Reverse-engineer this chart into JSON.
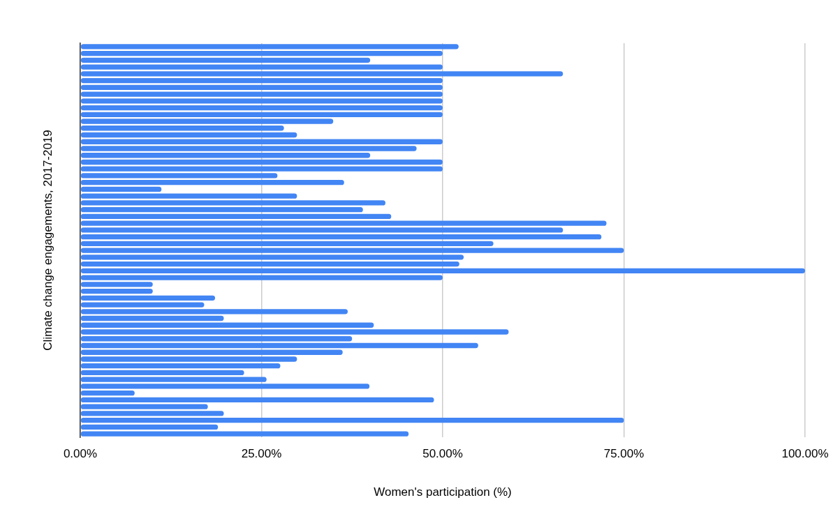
{
  "chart_data": {
    "type": "bar",
    "orientation": "horizontal",
    "xlabel": "Women's participation (%)",
    "ylabel": "Climate change engagements, 2017-2019",
    "categories": [
      null,
      null,
      null,
      null,
      null,
      null,
      null,
      null,
      null,
      null,
      null,
      null,
      null,
      null,
      null,
      null,
      null,
      null,
      null,
      null,
      null,
      null,
      null,
      null,
      null,
      null,
      null,
      null,
      null,
      null,
      null,
      null,
      null,
      null,
      null,
      null,
      null,
      null,
      null,
      null,
      null,
      null,
      null,
      null,
      null,
      null,
      null,
      null,
      null,
      null,
      null,
      null,
      null,
      null,
      null,
      null,
      null,
      null
    ],
    "values": [
      52.2,
      50,
      40,
      50,
      66.6,
      50,
      50,
      50,
      50,
      50,
      50,
      34.9,
      28.1,
      29.9,
      50,
      46.4,
      40,
      50,
      50,
      27.2,
      36.4,
      11.2,
      29.9,
      42.1,
      39.0,
      42.9,
      72.6,
      66.6,
      71.9,
      57.0,
      75,
      52.9,
      52.3,
      100,
      50,
      10,
      10,
      18.6,
      17.1,
      36.9,
      19.8,
      40.5,
      59.1,
      37.5,
      54.9,
      36.2,
      29.9,
      27.6,
      22.6,
      25.7,
      39.9,
      7.5,
      48.8,
      17.6,
      19.8,
      75,
      19,
      45.3
    ],
    "color": "#4285f4",
    "xlim": [
      0,
      100
    ],
    "xticks": [
      {
        "value": 0,
        "label": "0.00%"
      },
      {
        "value": 25,
        "label": "25.00%"
      },
      {
        "value": 50,
        "label": "50.00%"
      },
      {
        "value": 75,
        "label": "75.00%"
      },
      {
        "value": 100,
        "label": "100.00%"
      }
    ],
    "grid": "x",
    "legend": false
  }
}
